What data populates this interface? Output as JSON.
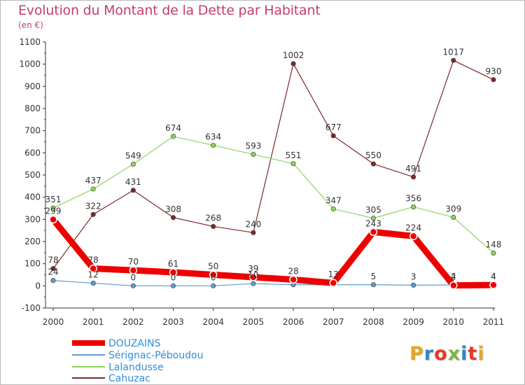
{
  "header": {
    "title": "Evolution du Montant de la Dette par Habitant",
    "unit": "(en €)"
  },
  "logo": {
    "text": "Proxiti",
    "letter_colors": [
      "#e8a427",
      "#2e86c9",
      "#e23a2a",
      "#7ab648",
      "#2e86c9",
      "#e23a2a",
      "#e8a427"
    ]
  },
  "chart_data": {
    "type": "line",
    "title": "Evolution du Montant de la Dette par Habitant",
    "ylabel": "(en €)",
    "xlabel": "",
    "x": [
      "2000",
      "2001",
      "2002",
      "2003",
      "2004",
      "2005",
      "2006",
      "2007",
      "2008",
      "2009",
      "2010",
      "2011"
    ],
    "ylim": [
      -100,
      1100
    ],
    "yticks": [
      -100,
      0,
      100,
      200,
      300,
      400,
      500,
      600,
      700,
      800,
      900,
      1000,
      1100
    ],
    "grid": false,
    "legend_position": "bottom-left",
    "series": [
      {
        "name": "DOUZAINS",
        "color": "#ee0000",
        "values": [
          299,
          78,
          70,
          61,
          50,
          39,
          28,
          13,
          243,
          224,
          2,
          4
        ],
        "labels": [
          "299",
          "78",
          "70",
          "61",
          "50",
          "39",
          "28",
          "13",
          "243",
          "224",
          "2",
          "4"
        ]
      },
      {
        "name": "Sérignac-Péboudou",
        "color": "#5f9dcc",
        "values": [
          24,
          12,
          0,
          0,
          0,
          10,
          5,
          5,
          5,
          3,
          4,
          4
        ],
        "labels": [
          "24",
          "12",
          "0",
          "0",
          "0",
          "10",
          "",
          "",
          "5",
          "3",
          "4",
          "4"
        ]
      },
      {
        "name": "Lalandusse",
        "color": "#8fd35c",
        "values": [
          351,
          437,
          549,
          674,
          634,
          593,
          551,
          347,
          305,
          356,
          309,
          148
        ],
        "labels": [
          "351",
          "437",
          "549",
          "674",
          "634",
          "593",
          "551",
          "347",
          "305",
          "356",
          "309",
          "148"
        ]
      },
      {
        "name": "Cahuzac",
        "color": "#7a2a2a",
        "values": [
          78,
          322,
          431,
          308,
          268,
          240,
          1002,
          677,
          550,
          491,
          1017,
          930
        ],
        "labels": [
          "78",
          "322",
          "431",
          "308",
          "268",
          "240",
          "1002",
          "677",
          "550",
          "491",
          "1017",
          "930"
        ]
      }
    ]
  }
}
